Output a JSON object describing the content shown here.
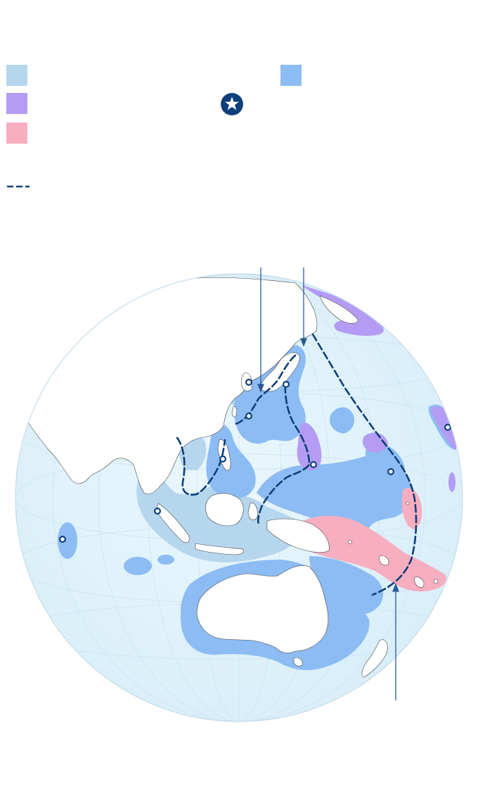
{
  "legend": {
    "items": [
      {
        "id": "light-blue-zone",
        "color": "#b6d6ee",
        "label": ""
      },
      {
        "id": "medium-blue-zone",
        "color": "#8cbcf3",
        "label": ""
      },
      {
        "id": "purple-zone",
        "color": "#b49cf5",
        "label": ""
      },
      {
        "id": "pink-zone",
        "color": "#f7aec0",
        "label": ""
      },
      {
        "id": "base-marker",
        "icon": "star-in-circle-icon",
        "color": "#0e3f7a",
        "label": ""
      },
      {
        "id": "island-chain-line",
        "icon": "dashed-line-icon",
        "color": "#0e3f7a",
        "label": ""
      }
    ]
  },
  "map": {
    "ocean_color": "#e4f4fc",
    "land_color": "#ffffff",
    "border_color": "#333333",
    "line_color": "#0e3f7a",
    "annotations": [
      {
        "id": "pointer-korea",
        "label": ""
      },
      {
        "id": "pointer-japan",
        "label": ""
      },
      {
        "id": "pointer-south-pacific",
        "label": ""
      }
    ]
  }
}
